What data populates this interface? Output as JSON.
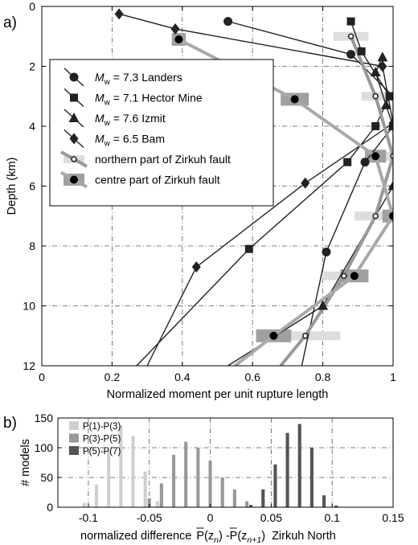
{
  "panel_a_label": "a)",
  "panel_b_label": "b)",
  "chart_data": [
    {
      "type": "line",
      "xlabel": "Normalized moment per unit rupture length",
      "ylabel": "Depth (km)",
      "xlim": [
        0,
        1
      ],
      "ylim": [
        0,
        12
      ],
      "y_inverted": true,
      "xticks": [
        "0",
        "0.2",
        "0.4",
        "0.6",
        "0.8",
        "1"
      ],
      "yticks": [
        "0",
        "2",
        "4",
        "6",
        "8",
        "10",
        "12"
      ],
      "grid": true,
      "legend_position": "upper-left",
      "series": [
        {
          "name": "7.3 Landers",
          "mw": "M",
          "sub": "w",
          "marker": "circle",
          "color": "#222222",
          "x": [
            0.53,
            0.88,
            1.0,
            1.0,
            0.92,
            0.81,
            0.74
          ],
          "y": [
            0.5,
            1.6,
            3.0,
            4.0,
            5.2,
            8.2,
            12.0
          ]
        },
        {
          "name": "7.1 Hector Mine",
          "mw": "M",
          "sub": "w",
          "marker": "square",
          "color": "#222222",
          "x": [
            0.88,
            0.91,
            0.99,
            0.95,
            0.87,
            0.59,
            0.27
          ],
          "y": [
            0.5,
            1.5,
            3.0,
            4.0,
            5.2,
            8.1,
            12.0
          ]
        },
        {
          "name": "7.6 Izmit",
          "mw": "M",
          "sub": "w",
          "marker": "triangle",
          "color": "#222222",
          "x": [
            0.97,
            0.95,
            0.98,
            1.0,
            1.0,
            0.8,
            0.53
          ],
          "y": [
            1.7,
            2.2,
            3.3,
            4.0,
            6.0,
            10.0,
            12.0
          ]
        },
        {
          "name": "6.5 Bam",
          "mw": "M",
          "sub": "w",
          "marker": "diamond",
          "color": "#222222",
          "x": [
            0.22,
            0.38,
            0.97,
            1.0,
            0.75,
            0.44,
            0.3
          ],
          "y": [
            0.25,
            0.75,
            2.0,
            3.9,
            5.9,
            8.7,
            12.0
          ]
        },
        {
          "name": "northern part of Zirkuh fault",
          "marker": "open-circle",
          "color": "#999999",
          "error_bar_color": "#dddddd",
          "x": [
            0.88,
            0.95,
            1.0,
            0.95,
            0.86,
            0.75,
            0.68
          ],
          "y": [
            1.0,
            3.0,
            5.0,
            7.0,
            9.0,
            11.0,
            12.0
          ],
          "xerr": [
            0.05,
            0.04,
            0.06,
            0.06,
            0.06,
            0.1,
            0
          ]
        },
        {
          "name": "centre part of Zirkuh fault",
          "marker": "filled-circle",
          "color": "#a9a9a9",
          "error_bar_color": "#a0a0a0",
          "x": [
            0.39,
            0.72,
            0.95,
            1.0,
            0.89,
            0.66,
            0.55
          ],
          "y": [
            1.1,
            3.1,
            5.0,
            7.0,
            9.0,
            11.0,
            12.0
          ],
          "xerr": [
            0.02,
            0.04,
            0.03,
            0.03,
            0.04,
            0.05,
            0
          ]
        }
      ]
    },
    {
      "type": "bar",
      "xlabel_prefix": "normalized difference",
      "xlabel_suffix": "Zirkuh North",
      "ylabel": "# models",
      "xlim": [
        -0.125,
        0.15
      ],
      "ylim": [
        0,
        150
      ],
      "xticks": [
        "-0.1",
        "-0.05",
        "0",
        "0.05",
        "0.1",
        "0.15"
      ],
      "yticks": [
        "0",
        "50",
        "100",
        "150"
      ],
      "grid": true,
      "legend_position": "top-left",
      "bin_centers": [
        -0.1,
        -0.09,
        -0.08,
        -0.07,
        -0.06,
        -0.05,
        -0.04,
        -0.03,
        -0.02,
        -0.01,
        0.0,
        0.01,
        0.02,
        0.03,
        0.04,
        0.05,
        0.06,
        0.07,
        0.08,
        0.09,
        0.1
      ],
      "series": [
        {
          "name": "P(1)-P(3)",
          "color": "#cfcfcf",
          "values": [
            7,
            38,
            95,
            138,
            120,
            60,
            10,
            0,
            0,
            0,
            0,
            0,
            0,
            0,
            0,
            0,
            0,
            0,
            0,
            0,
            0
          ]
        },
        {
          "name": "P(3)-P(5)",
          "color": "#999999",
          "values": [
            0,
            0,
            0,
            0,
            0,
            15,
            40,
            88,
            110,
            100,
            78,
            50,
            30,
            10,
            0,
            0,
            0,
            0,
            0,
            0,
            0
          ]
        },
        {
          "name": "P(5)-P(7)",
          "color": "#555555",
          "values": [
            0,
            0,
            0,
            0,
            0,
            0,
            0,
            0,
            0,
            0,
            0,
            0,
            0,
            4,
            30,
            72,
            125,
            140,
            100,
            20,
            3
          ]
        }
      ]
    }
  ]
}
